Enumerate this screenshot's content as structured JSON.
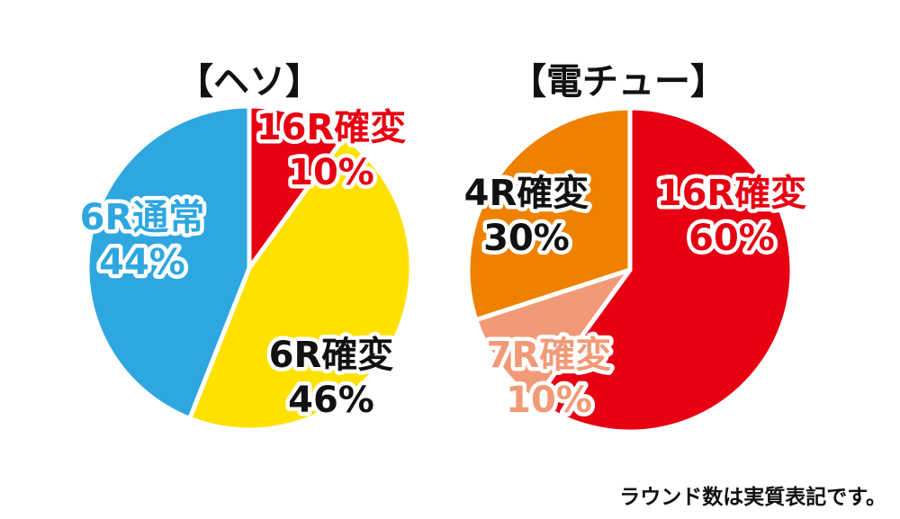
{
  "chart_data": [
    {
      "type": "pie",
      "title": "【ヘソ】",
      "slices": [
        {
          "label": "16R確変",
          "value": 10,
          "value_label": "10%",
          "color": "#E60012",
          "text_color": "#E60012"
        },
        {
          "label": "6R確変",
          "value": 46,
          "value_label": "46%",
          "color": "#FFE100",
          "text_color": "#111111"
        },
        {
          "label": "6R通常",
          "value": 44,
          "value_label": "44%",
          "color": "#2EA7E0",
          "text_color": "#2EA7E0"
        }
      ]
    },
    {
      "type": "pie",
      "title": "【電チュー】",
      "slices": [
        {
          "label": "16R確変",
          "value": 60,
          "value_label": "60%",
          "color": "#E60012",
          "text_color": "#E60012"
        },
        {
          "label": "7R確変",
          "value": 10,
          "value_label": "10%",
          "color": "#F19A77",
          "text_color": "#F19A77"
        },
        {
          "label": "4R確変",
          "value": 30,
          "value_label": "30%",
          "color": "#EE8200",
          "text_color": "#111111"
        }
      ]
    }
  ],
  "footnote": "ラウンド数は実質表記です。"
}
